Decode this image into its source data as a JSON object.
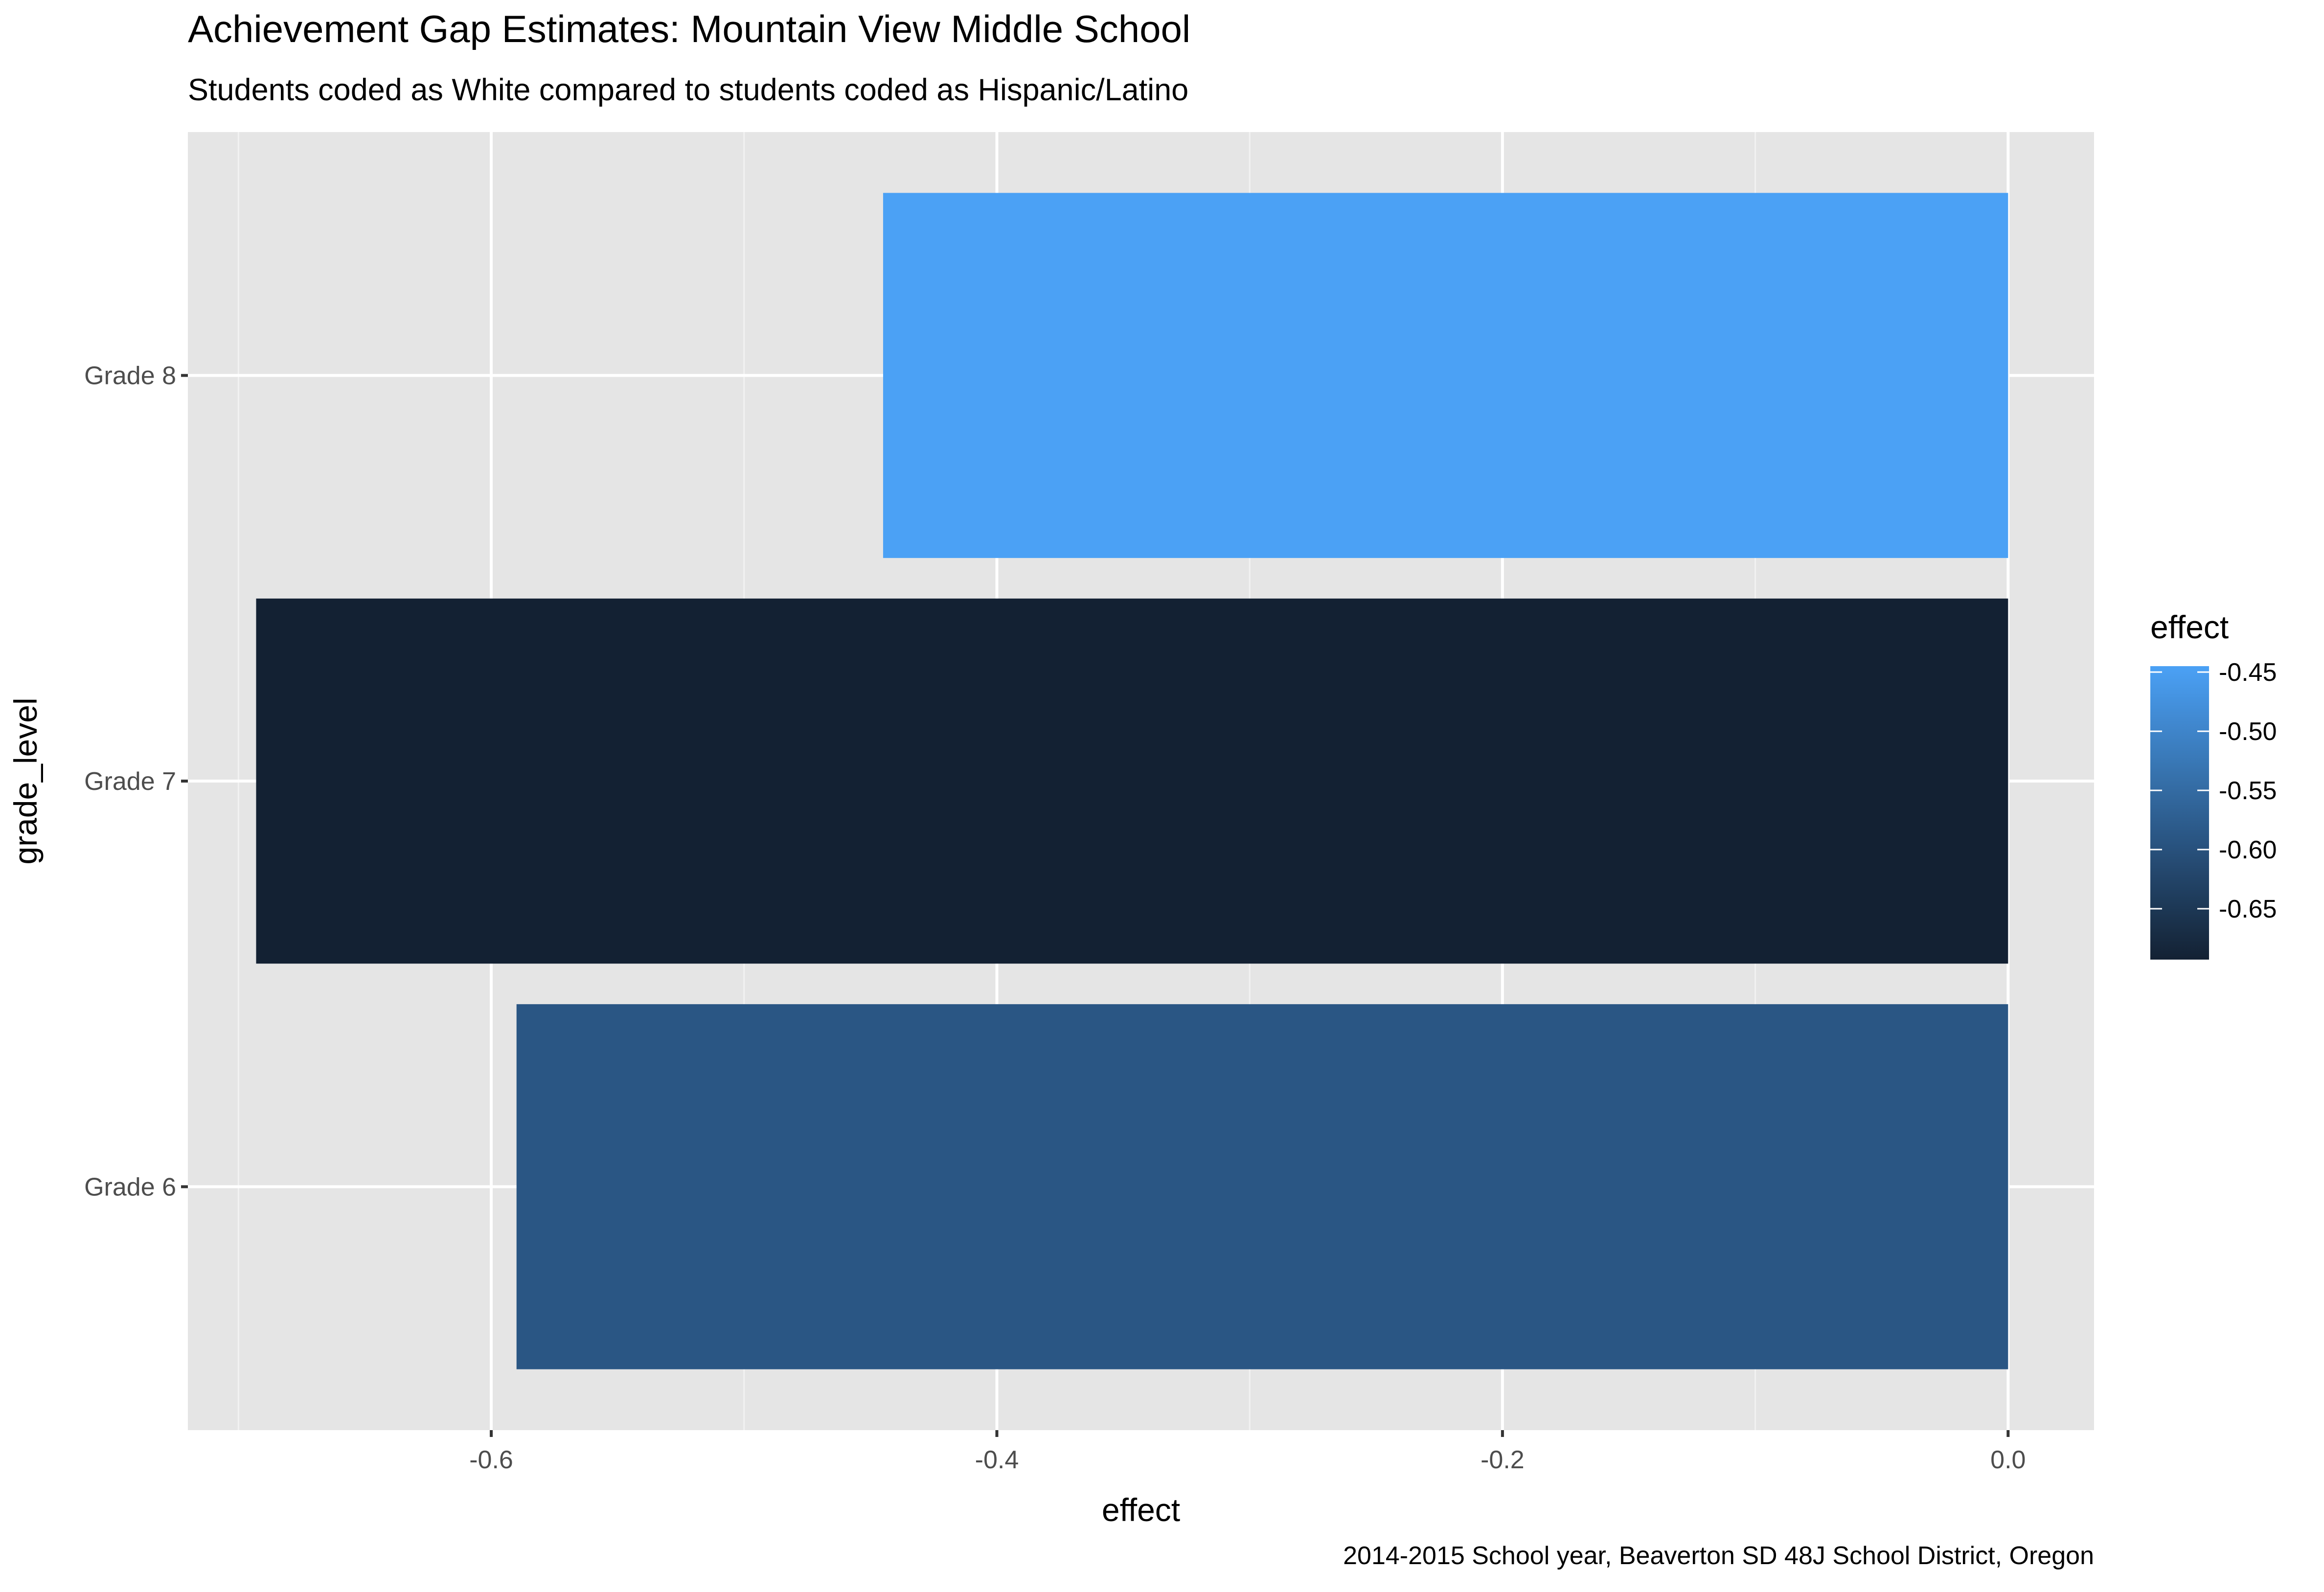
{
  "chart_data": {
    "type": "bar",
    "orientation": "horizontal",
    "title": "Achievement Gap Estimates: Mountain View Middle School",
    "subtitle": "Students coded as White compared to students coded as Hispanic/Latino",
    "caption": "2014-2015 School year, Beaverton SD 48J School District, Oregon",
    "xlabel": "effect",
    "ylabel": "grade_level",
    "categories": [
      "Grade 6",
      "Grade 7",
      "Grade 8"
    ],
    "values": [
      -0.59,
      -0.693,
      -0.445
    ],
    "xlim": [
      -0.72,
      0.034
    ],
    "xticks": [
      -0.6,
      -0.4,
      -0.2,
      0.0
    ],
    "xtick_labels": [
      "-0.6",
      "-0.4",
      "-0.2",
      "0.0"
    ],
    "grid": true,
    "background": "#e5e5e5",
    "fill_scale": {
      "low_color": "#132133",
      "high_color": "#4ba1f5",
      "low_value": -0.693,
      "high_value": -0.445
    },
    "legend": {
      "title": "effect",
      "position": "right",
      "ticks": [
        -0.45,
        -0.5,
        -0.55,
        -0.6,
        -0.65
      ],
      "tick_labels": [
        "-0.45",
        "-0.50",
        "-0.55",
        "-0.60",
        "-0.65"
      ]
    }
  }
}
